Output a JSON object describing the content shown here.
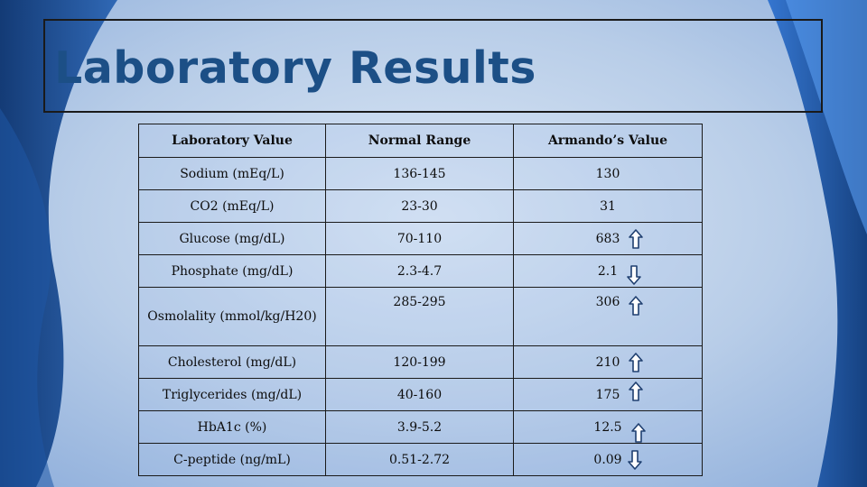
{
  "slide": {
    "title": "Laboratory Results",
    "colors": {
      "title": "#1c4f86",
      "background_light": "#c9d9ee",
      "background_dark": "#0f3a78",
      "accent_blue": "#2f6fc8"
    }
  },
  "table": {
    "headers": [
      "Laboratory Value",
      "Normal Range",
      "Armando’s Value"
    ],
    "rows": [
      {
        "lab": "Sodium (mEq/L)",
        "range": "136-145",
        "value": "130",
        "arrow": ""
      },
      {
        "lab": "CO2 (mEq/L)",
        "range": "23-30",
        "value": "31",
        "arrow": ""
      },
      {
        "lab": "Glucose (mg/dL)",
        "range": "70-110",
        "value": "683",
        "arrow": "up-arrow-icon"
      },
      {
        "lab": "Phosphate (mg/dL)",
        "range": "2.3-4.7",
        "value": "2.1",
        "arrow": "down-arrow-icon"
      },
      {
        "lab": "Osmolality (mmol/kg/H20)",
        "range": "285-295",
        "value": "306",
        "arrow": "up-arrow-icon"
      },
      {
        "lab": "Cholesterol (mg/dL)",
        "range": "120-199",
        "value": "210",
        "arrow": "up-arrow-icon"
      },
      {
        "lab": "Triglycerides (mg/dL)",
        "range": "40-160",
        "value": "175",
        "arrow": "up-arrow-icon"
      },
      {
        "lab": "HbA1c (%)",
        "range": "3.9-5.2",
        "value": "12.5",
        "arrow": "up-arrow-icon"
      },
      {
        "lab": "C-peptide (ng/mL)",
        "range": "0.51-2.72",
        "value": "0.09",
        "arrow": "down-arrow-icon"
      }
    ]
  }
}
